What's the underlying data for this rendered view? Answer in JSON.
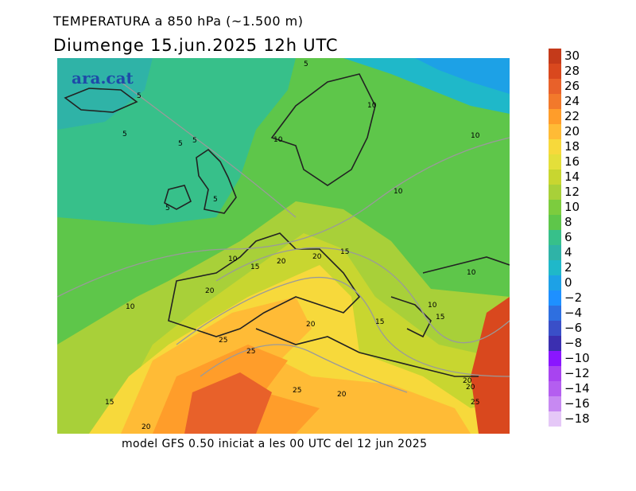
{
  "header": {
    "title": "TEMPERATURA a 850 hPa (~1.500 m)",
    "subtitle": "Diumenge  15.jun.2025 12h UTC"
  },
  "footer": {
    "model_info": "model GFS 0.50 iniciat a les 00 UTC del 12 jun 2025"
  },
  "map": {
    "logo_text": "ara.cat",
    "contour_labels": [
      "5",
      "5",
      "5",
      "5",
      "5",
      "5",
      "5",
      "10",
      "10",
      "10",
      "10",
      "10",
      "10",
      "10",
      "15",
      "15",
      "15",
      "20",
      "20",
      "20",
      "20",
      "10",
      "15",
      "25",
      "25",
      "25",
      "20",
      "20",
      "20",
      "20",
      "15",
      "20",
      "25"
    ],
    "colors": {
      "very_cold": "#1e90ff",
      "cold": "#1fb8c9",
      "cool": "#37c08a",
      "mild": "#7ccc3e",
      "warm": "#c8d630",
      "hot": "#ff9d2a",
      "very_hot": "#d9481e"
    }
  },
  "legend": {
    "labels": [
      "30",
      "28",
      "26",
      "24",
      "22",
      "20",
      "18",
      "16",
      "14",
      "12",
      "10",
      "8",
      "6",
      "4",
      "2",
      "0",
      "−2",
      "−4",
      "−6",
      "−8",
      "−10",
      "−12",
      "−14",
      "−16",
      "−18"
    ],
    "colors": [
      "#c43a1a",
      "#d9481e",
      "#e8612a",
      "#f2792b",
      "#ff9d2a",
      "#ffbb36",
      "#f7d93b",
      "#e4df3a",
      "#c8d630",
      "#a8d039",
      "#7ccc3e",
      "#5ec64a",
      "#37c08a",
      "#2fb3a7",
      "#1fb8c9",
      "#1da1e6",
      "#1e90ff",
      "#2e6fe0",
      "#3a4fc8",
      "#3b2fb0",
      "#8a16ff",
      "#a844f0",
      "#b45ef0",
      "#c789f2",
      "#e5c8f7"
    ]
  }
}
